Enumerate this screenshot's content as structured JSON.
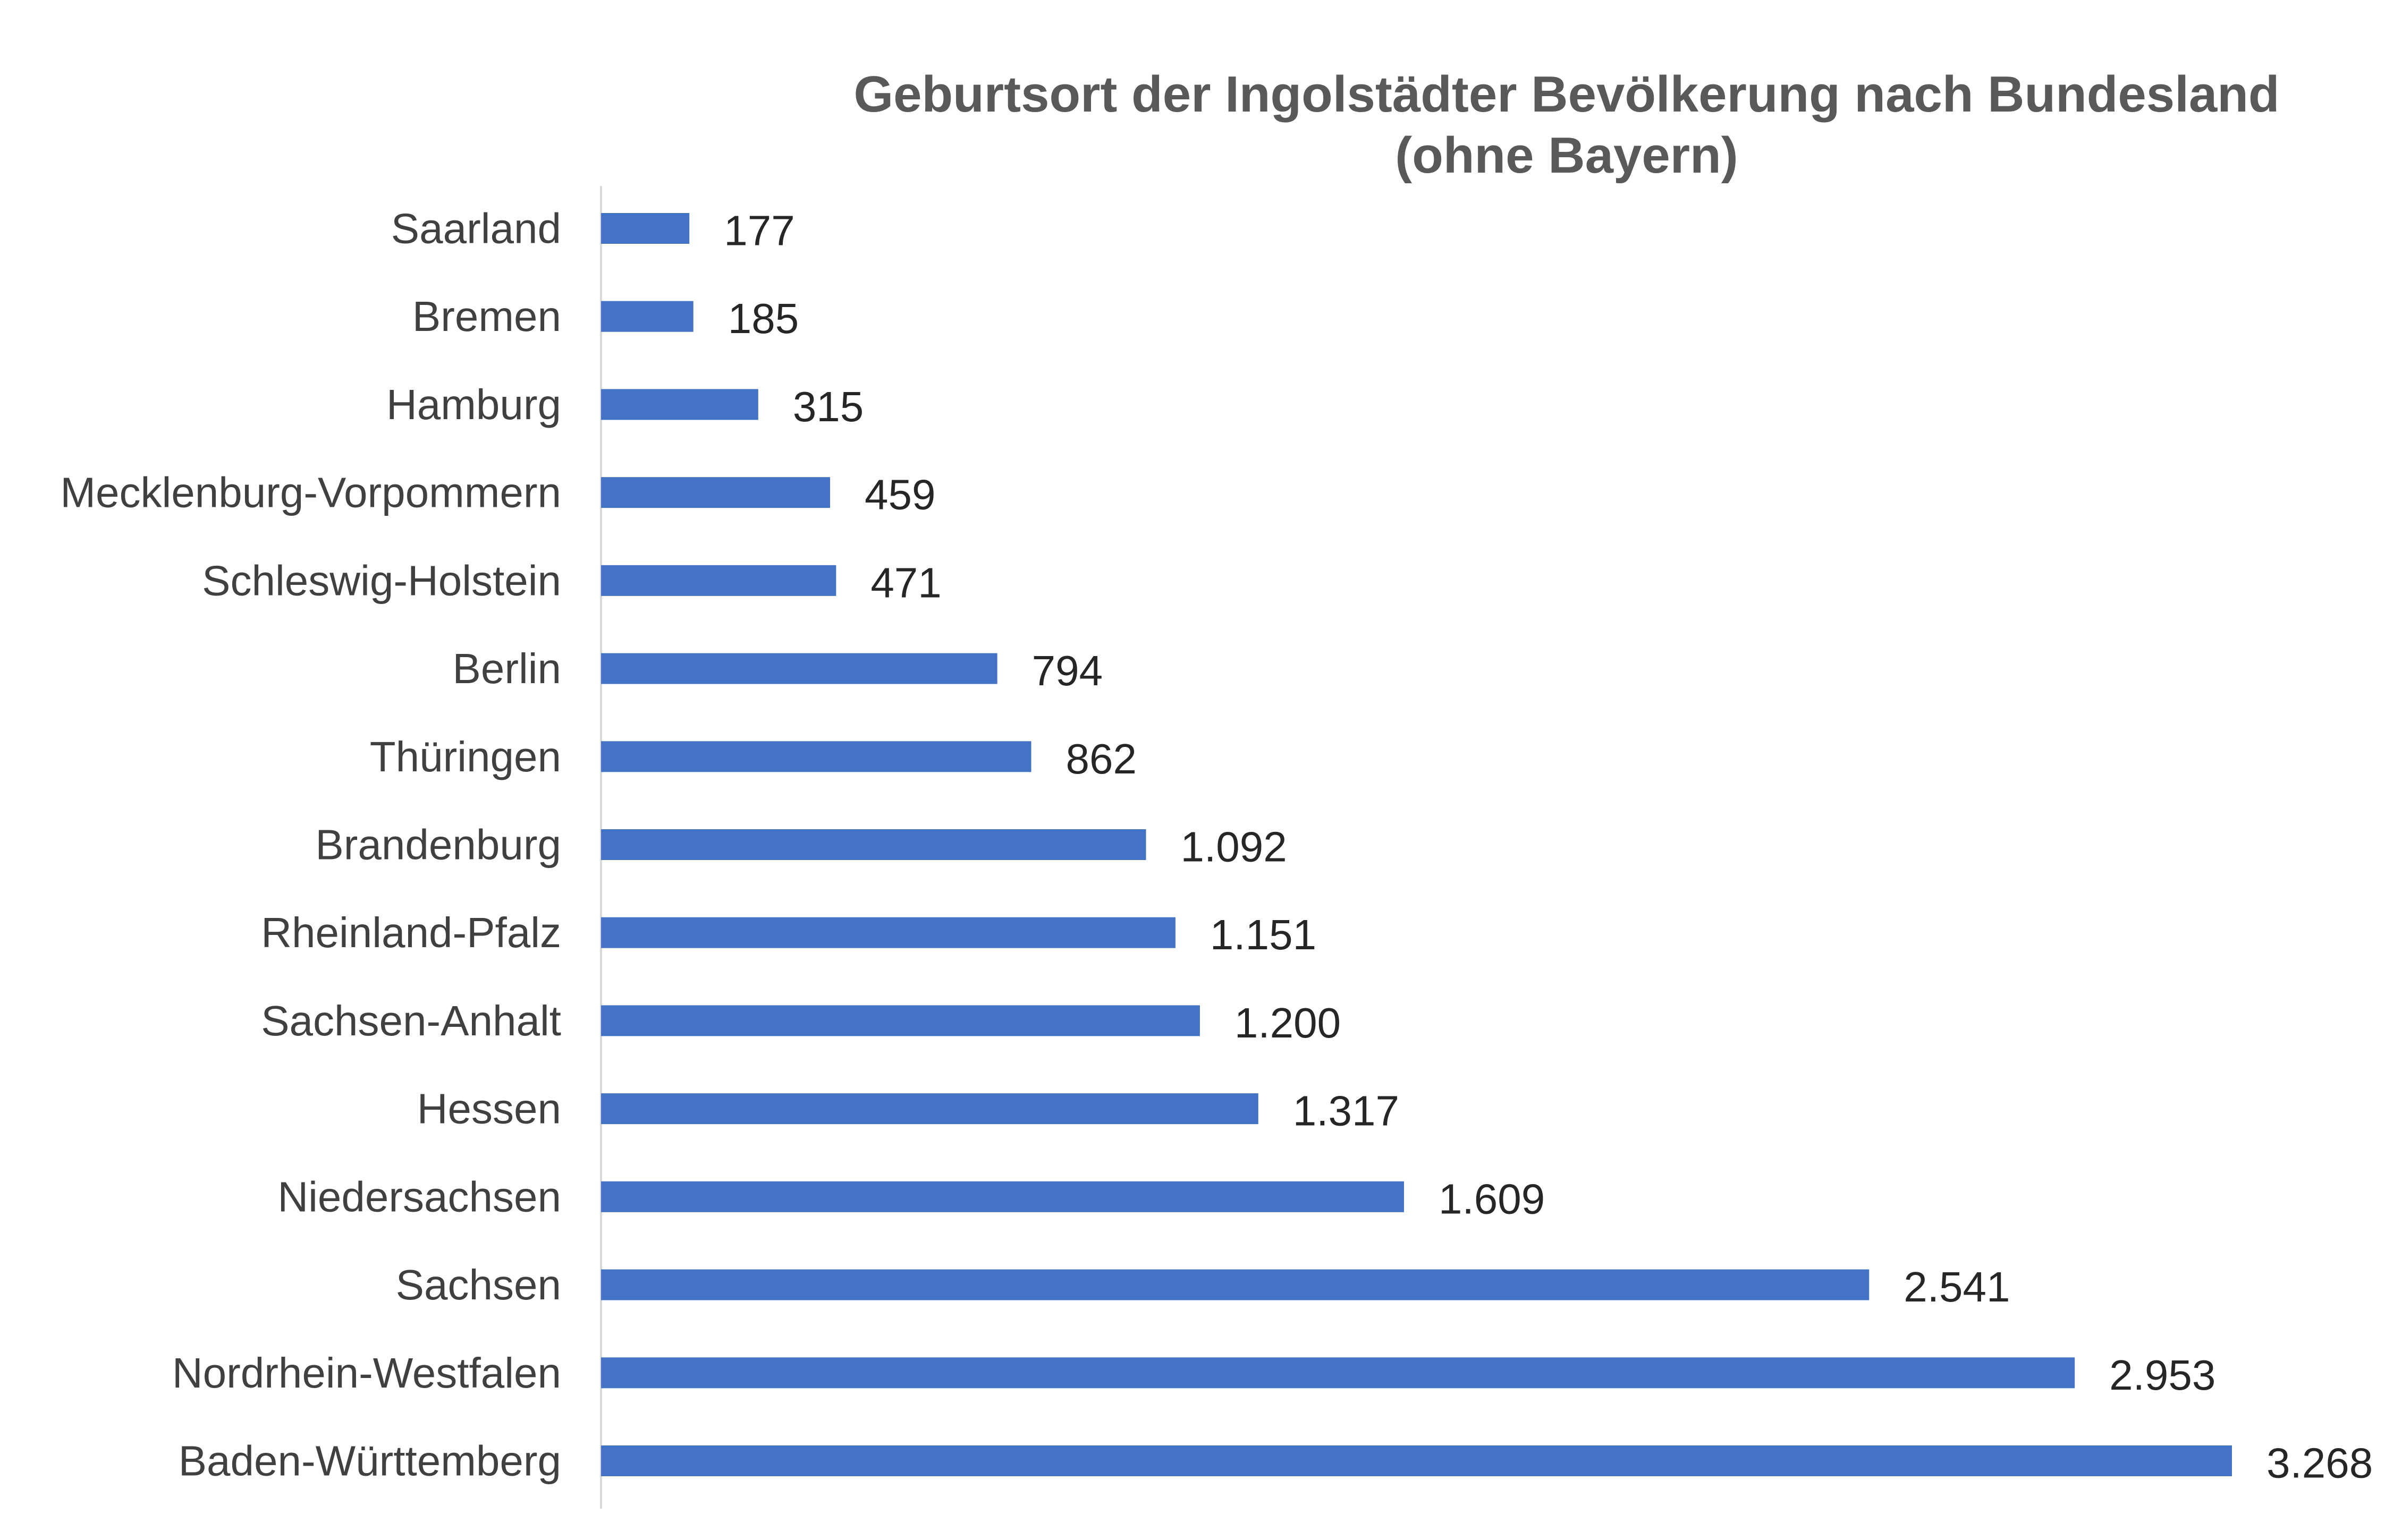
{
  "chart_data": {
    "type": "bar",
    "orientation": "horizontal",
    "title": "Geburtsort der Ingolstädter Bevölkerung nach Bundesland (ohne Bayern)",
    "title_lines": [
      "Geburtsort der Ingolstädter Bevölkerung nach Bundesland",
      "(ohne Bayern)"
    ],
    "xlabel": "",
    "ylabel": "",
    "categories": [
      "Saarland",
      "Bremen",
      "Hamburg",
      "Mecklenburg-Vorpommern",
      "Schleswig-Holstein",
      "Berlin",
      "Thüringen",
      "Brandenburg",
      "Rheinland-Pfalz",
      "Sachsen-Anhalt",
      "Hessen",
      "Niedersachsen",
      "Sachsen",
      "Nordrhein-Westfalen",
      "Baden-Württemberg"
    ],
    "values": [
      177,
      185,
      315,
      459,
      471,
      794,
      862,
      1092,
      1151,
      1200,
      1317,
      1609,
      2541,
      2953,
      3268
    ],
    "value_labels": [
      "177",
      "185",
      "315",
      "459",
      "471",
      "794",
      "862",
      "1.092",
      "1.151",
      "1.200",
      "1.317",
      "1.609",
      "2.541",
      "2.953",
      "3.268"
    ],
    "xlim": [
      0,
      3268
    ],
    "grid": false,
    "legend": "none",
    "bar_color": "#4472C4",
    "axis_color": "#D9D9D9"
  }
}
